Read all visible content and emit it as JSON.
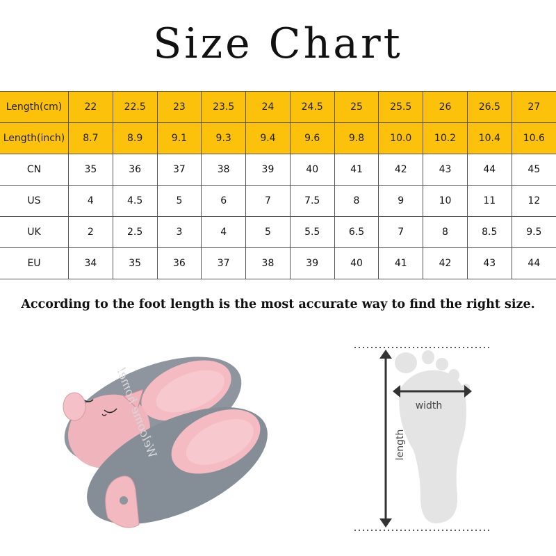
{
  "title": "Size Chart",
  "size_table": {
    "rows": [
      {
        "label": "Length(cm)",
        "highlight": true,
        "values": [
          "22",
          "22.5",
          "23",
          "23.5",
          "24",
          "24.5",
          "25",
          "25.5",
          "26",
          "26.5",
          "27"
        ]
      },
      {
        "label": "Length(inch)",
        "highlight": true,
        "values": [
          "8.7",
          "8.9",
          "9.1",
          "9.3",
          "9.4",
          "9.6",
          "9.8",
          "10.0",
          "10.2",
          "10.4",
          "10.6"
        ]
      },
      {
        "label": "CN",
        "highlight": false,
        "values": [
          "35",
          "36",
          "37",
          "38",
          "39",
          "40",
          "41",
          "42",
          "43",
          "44",
          "45"
        ]
      },
      {
        "label": "US",
        "highlight": false,
        "values": [
          "4",
          "4.5",
          "5",
          "6",
          "7",
          "7.5",
          "8",
          "9",
          "10",
          "11",
          "12"
        ]
      },
      {
        "label": "UK",
        "highlight": false,
        "values": [
          "2",
          "2.5",
          "3",
          "4",
          "5",
          "5.5",
          "6.5",
          "7",
          "8",
          "8.5",
          "9.5"
        ]
      },
      {
        "label": "EU",
        "highlight": false,
        "values": [
          "34",
          "35",
          "36",
          "37",
          "38",
          "39",
          "40",
          "41",
          "42",
          "43",
          "44"
        ]
      }
    ],
    "highlight_color": "#fcc10a"
  },
  "note": "According to the foot length is the most  accurate way to find the right size.",
  "product_image": {
    "description_icon": "cat-slippers-image",
    "embroidery": "Welcome home!",
    "colors": {
      "body": "#8c939c",
      "lining": "#f2b6bd"
    }
  },
  "foot_diagram": {
    "width_label": "width",
    "length_label": "length"
  }
}
